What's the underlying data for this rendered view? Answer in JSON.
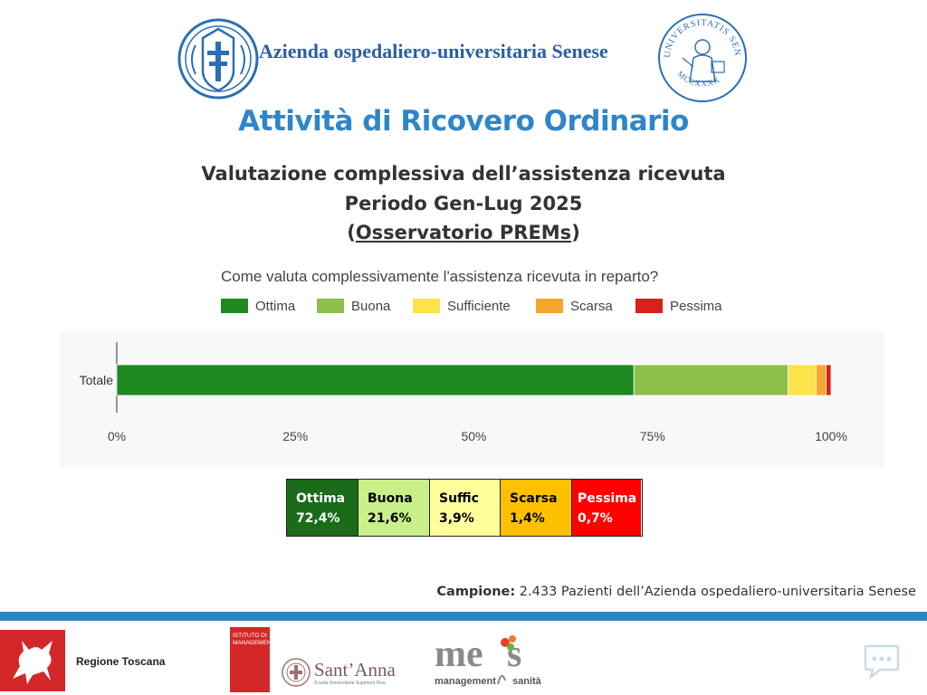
{
  "header": {
    "hospital_name": "Azienda ospedaliero-universitaria Senese",
    "right_seal_top_text": "UNIVERSITATIS SENARUM",
    "right_seal_bottom_text": "MCCXXXX"
  },
  "title": "Attività di Ricovero Ordinario",
  "subtitle": {
    "line1": "Valutazione complessiva dell’assistenza ricevuta",
    "line2": "Periodo Gen-Lug 2025",
    "line3_open": "(",
    "line3_link": "Osservatorio PREMs",
    "line3_close": ")"
  },
  "colors": {
    "ottima": "#1f8a1f",
    "buona": "#8cc04b",
    "sufficiente": "#fce34a",
    "scarsa": "#f6a52e",
    "pessima": "#d9201c",
    "title_blue": "#2e86c9"
  },
  "chart_data": {
    "type": "bar",
    "orientation": "horizontal",
    "stacked": true,
    "title": "Come valuta complessivamente l'assistenza ricevuta in reparto?",
    "categories": [
      "Totale"
    ],
    "series": [
      {
        "name": "Ottima",
        "values": [
          72.4
        ],
        "color": "#1f8a1f"
      },
      {
        "name": "Buona",
        "values": [
          21.6
        ],
        "color": "#8cc04b"
      },
      {
        "name": "Sufficiente",
        "values": [
          3.9
        ],
        "color": "#fce34a"
      },
      {
        "name": "Scarsa",
        "values": [
          1.4
        ],
        "color": "#f6a52e"
      },
      {
        "name": "Pessima",
        "values": [
          0.7
        ],
        "color": "#d9201c"
      }
    ],
    "xlim": [
      0,
      100
    ],
    "x_ticks": [
      "0%",
      "25%",
      "50%",
      "75%",
      "100%"
    ],
    "legend_position": "top",
    "grid": false
  },
  "summary_table": [
    {
      "label": "Ottima",
      "value": "72,4%",
      "bg": "#1a6b1a",
      "fg": "#ffffff"
    },
    {
      "label": "Buona",
      "value": "21,6%",
      "bg": "#c8f08a",
      "fg": "#000000"
    },
    {
      "label": "Suffic",
      "value": "3,9%",
      "bg": "#ffff9c",
      "fg": "#000000"
    },
    {
      "label": "Scarsa",
      "value": "1,4%",
      "bg": "#ffc000",
      "fg": "#000000"
    },
    {
      "label": "Pessima",
      "value": "0,7%",
      "bg": "#ff0000",
      "fg": "#ffffff"
    }
  ],
  "sample": {
    "label": "Campione:",
    "text": " 2.433 Pazienti dell’Azienda ospedaliero-universitaria Senese"
  },
  "footer": {
    "regione_label": "Regione Toscana",
    "sssa_box_label": "ISTITUTO DI MANAGEMENT",
    "sssa_name": "Sant’Anna",
    "sssa_sub": "Scuola Universitaria Superiore Pisa",
    "mes_text_left": "management",
    "mes_text_right": "sanità"
  },
  "icons": {
    "left_logo": "hospital-crest-icon",
    "right_logo": "university-seal-icon",
    "regione": "pegasus-icon",
    "chat": "chat-bubble-icon"
  }
}
